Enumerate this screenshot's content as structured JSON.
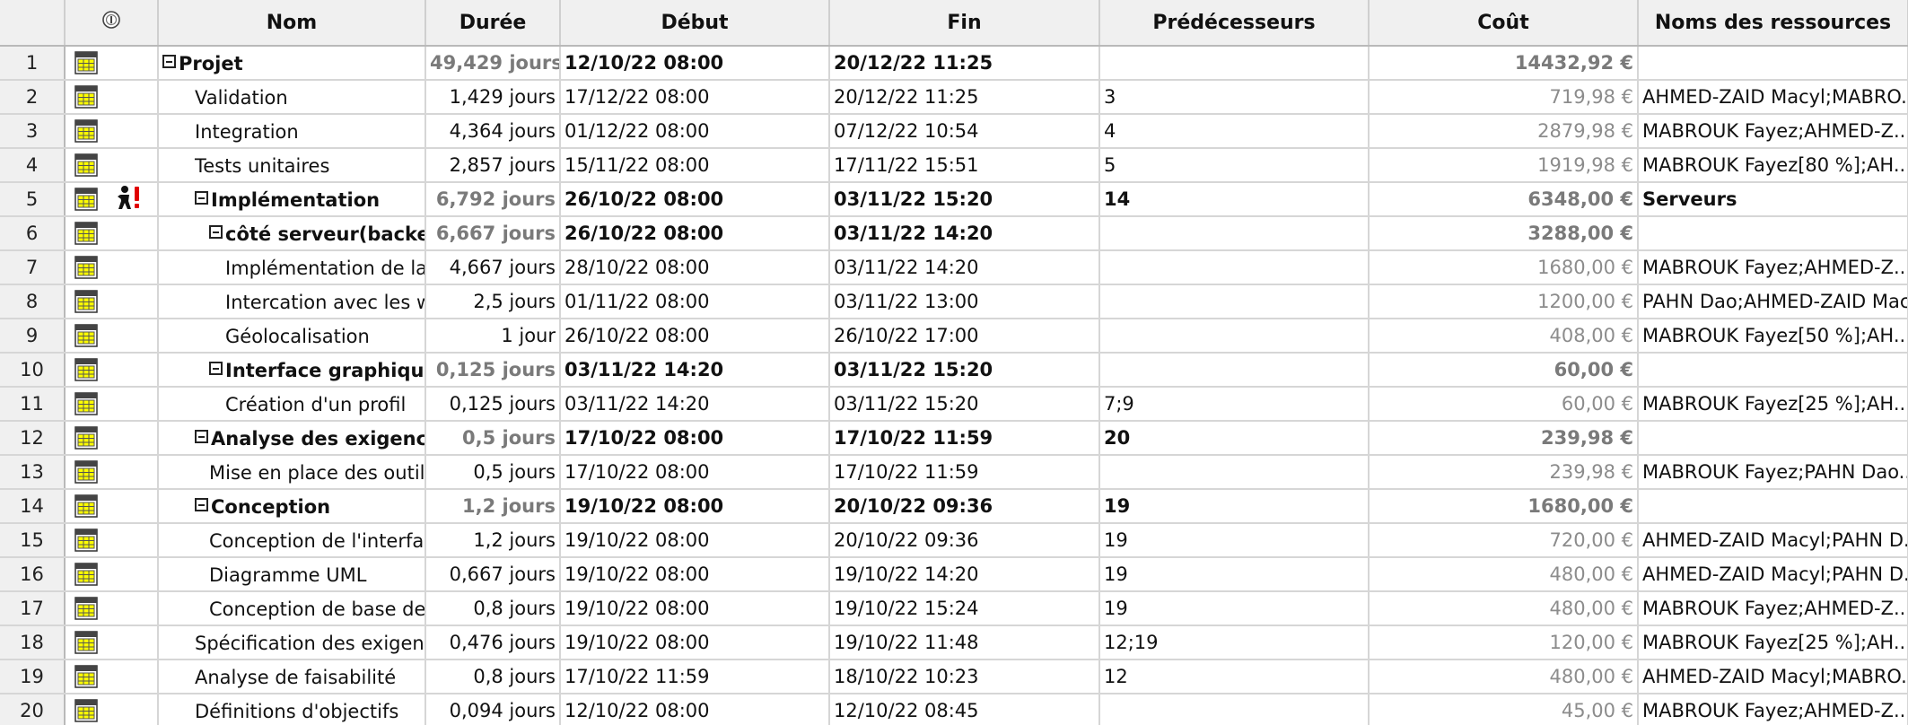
{
  "columns": {
    "indicators_icon": "info-circle-icon",
    "nom": "Nom",
    "duree": "Durée",
    "debut": "Début",
    "fin": "Fin",
    "predecesseurs": "Prédécesseurs",
    "cout": "Coût",
    "ressources": "Noms des ressources"
  },
  "rows": [
    {
      "id": "1",
      "nom": "Projet",
      "duree": "49,429 jours",
      "debut": "12/10/22 08:00",
      "fin": "20/12/22 11:25",
      "pred": "",
      "cout": "14432,92 €",
      "res": ""
    },
    {
      "id": "2",
      "nom": "Validation",
      "duree": "1,429 jours",
      "debut": "17/12/22 08:00",
      "fin": "20/12/22 11:25",
      "pred": "3",
      "cout": "719,98 €",
      "res": "AHMED-ZAID Macyl;MABRO..."
    },
    {
      "id": "3",
      "nom": "Integration",
      "duree": "4,364 jours",
      "debut": "01/12/22 08:00",
      "fin": "07/12/22 10:54",
      "pred": "4",
      "cout": "2879,98 €",
      "res": "MABROUK Fayez;AHMED-Z..."
    },
    {
      "id": "4",
      "nom": "Tests unitaires",
      "duree": "2,857 jours",
      "debut": "15/11/22 08:00",
      "fin": "17/11/22 15:51",
      "pred": "5",
      "cout": "1919,98 €",
      "res": "MABROUK Fayez[80 %];AH..."
    },
    {
      "id": "5",
      "nom": "Implémentation",
      "duree": "6,792 jours",
      "debut": "26/10/22 08:00",
      "fin": "03/11/22 15:20",
      "pred": "14",
      "cout": "6348,00 €",
      "res": "Serveurs"
    },
    {
      "id": "6",
      "nom": "côté serveur(backend",
      "duree": "6,667 jours",
      "debut": "26/10/22 08:00",
      "fin": "03/11/22 14:20",
      "pred": "",
      "cout": "3288,00 €",
      "res": ""
    },
    {
      "id": "7",
      "nom": "Implémentation de la ba",
      "duree": "4,667 jours",
      "debut": "28/10/22 08:00",
      "fin": "03/11/22 14:20",
      "pred": "",
      "cout": "1680,00 €",
      "res": "MABROUK Fayez;AHMED-Z..."
    },
    {
      "id": "8",
      "nom": "Intercation avec les we",
      "duree": "2,5 jours",
      "debut": "01/11/22 08:00",
      "fin": "03/11/22 13:00",
      "pred": "",
      "cout": "1200,00 €",
      "res": "PAHN Dao;AHMED-ZAID Macyl"
    },
    {
      "id": "9",
      "nom": "Géolocalisation",
      "duree": "1 jour",
      "debut": "26/10/22 08:00",
      "fin": "26/10/22 17:00",
      "pred": "",
      "cout": "408,00 €",
      "res": "MABROUK Fayez[50 %];AH..."
    },
    {
      "id": "10",
      "nom": "Interface graphique",
      "duree": "0,125 jours",
      "debut": "03/11/22 14:20",
      "fin": "03/11/22 15:20",
      "pred": "",
      "cout": "60,00 €",
      "res": ""
    },
    {
      "id": "11",
      "nom": "Création d'un profil",
      "duree": "0,125 jours",
      "debut": "03/11/22 14:20",
      "fin": "03/11/22 15:20",
      "pred": "7;9",
      "cout": "60,00 €",
      "res": "MABROUK Fayez[25 %];AH..."
    },
    {
      "id": "12",
      "nom": "Analyse des exigences",
      "duree": "0,5 jours",
      "debut": "17/10/22 08:00",
      "fin": "17/10/22 11:59",
      "pred": "20",
      "cout": "239,98 €",
      "res": ""
    },
    {
      "id": "13",
      "nom": "Mise en place des outils t",
      "duree": "0,5 jours",
      "debut": "17/10/22 08:00",
      "fin": "17/10/22 11:59",
      "pred": "",
      "cout": "239,98 €",
      "res": "MABROUK Fayez;PAHN Dao..."
    },
    {
      "id": "14",
      "nom": "Conception",
      "duree": "1,2 jours",
      "debut": "19/10/22 08:00",
      "fin": "20/10/22 09:36",
      "pred": "19",
      "cout": "1680,00 €",
      "res": ""
    },
    {
      "id": "15",
      "nom": "Conception de l'interface",
      "duree": "1,2 jours",
      "debut": "19/10/22 08:00",
      "fin": "20/10/22 09:36",
      "pred": "19",
      "cout": "720,00 €",
      "res": "AHMED-ZAID Macyl;PAHN D..."
    },
    {
      "id": "16",
      "nom": "Diagramme UML",
      "duree": "0,667 jours",
      "debut": "19/10/22 08:00",
      "fin": "19/10/22 14:20",
      "pred": "19",
      "cout": "480,00 €",
      "res": "AHMED-ZAID Macyl;PAHN D..."
    },
    {
      "id": "17",
      "nom": "Conception de base de d",
      "duree": "0,8 jours",
      "debut": "19/10/22 08:00",
      "fin": "19/10/22 15:24",
      "pred": "19",
      "cout": "480,00 €",
      "res": "MABROUK Fayez;AHMED-Z..."
    },
    {
      "id": "18",
      "nom": "Spécification des exigences",
      "duree": "0,476 jours",
      "debut": "19/10/22 08:00",
      "fin": "19/10/22 11:48",
      "pred": "12;19",
      "cout": "120,00 €",
      "res": "MABROUK Fayez[25 %];AH..."
    },
    {
      "id": "19",
      "nom": "Analyse de faisabilité",
      "duree": "0,8 jours",
      "debut": "17/10/22 11:59",
      "fin": "18/10/22 10:23",
      "pred": "12",
      "cout": "480,00 €",
      "res": "AHMED-ZAID Macyl;MABRO..."
    },
    {
      "id": "20",
      "nom": "Définitions d'objectifs",
      "duree": "0,094 jours",
      "debut": "12/10/22 08:00",
      "fin": "12/10/22 08:45",
      "pred": "",
      "cout": "45,00 €",
      "res": "MABROUK Fayez;AHMED-Z..."
    }
  ],
  "row_meta": [
    {
      "level": 0,
      "summary": true,
      "extra_icon": ""
    },
    {
      "level": 1,
      "summary": false,
      "extra_icon": ""
    },
    {
      "level": 1,
      "summary": false,
      "extra_icon": ""
    },
    {
      "level": 1,
      "summary": false,
      "extra_icon": ""
    },
    {
      "level": 1,
      "summary": true,
      "extra_icon": "resource-overallocation-icon"
    },
    {
      "level": 2,
      "summary": true,
      "extra_icon": ""
    },
    {
      "level": 3,
      "summary": false,
      "extra_icon": ""
    },
    {
      "level": 3,
      "summary": false,
      "extra_icon": ""
    },
    {
      "level": 3,
      "summary": false,
      "extra_icon": ""
    },
    {
      "level": 2,
      "summary": true,
      "extra_icon": ""
    },
    {
      "level": 3,
      "summary": false,
      "extra_icon": ""
    },
    {
      "level": 1,
      "summary": true,
      "extra_icon": ""
    },
    {
      "level": 2,
      "summary": false,
      "extra_icon": ""
    },
    {
      "level": 1,
      "summary": true,
      "extra_icon": ""
    },
    {
      "level": 2,
      "summary": false,
      "extra_icon": ""
    },
    {
      "level": 2,
      "summary": false,
      "extra_icon": ""
    },
    {
      "level": 2,
      "summary": false,
      "extra_icon": ""
    },
    {
      "level": 1,
      "summary": false,
      "extra_icon": ""
    },
    {
      "level": 1,
      "summary": false,
      "extra_icon": ""
    },
    {
      "level": 1,
      "summary": false,
      "extra_icon": ""
    }
  ],
  "row_icon": "task-table-icon",
  "colors": {
    "header_bg": "#f0f0f0",
    "grid": "#d6d6d6",
    "cost_text": "#8c8c8c",
    "summary_duration": "#7a7a7a",
    "task_icon_yellow": "#ffff00",
    "overalloc_red": "#e00000"
  }
}
